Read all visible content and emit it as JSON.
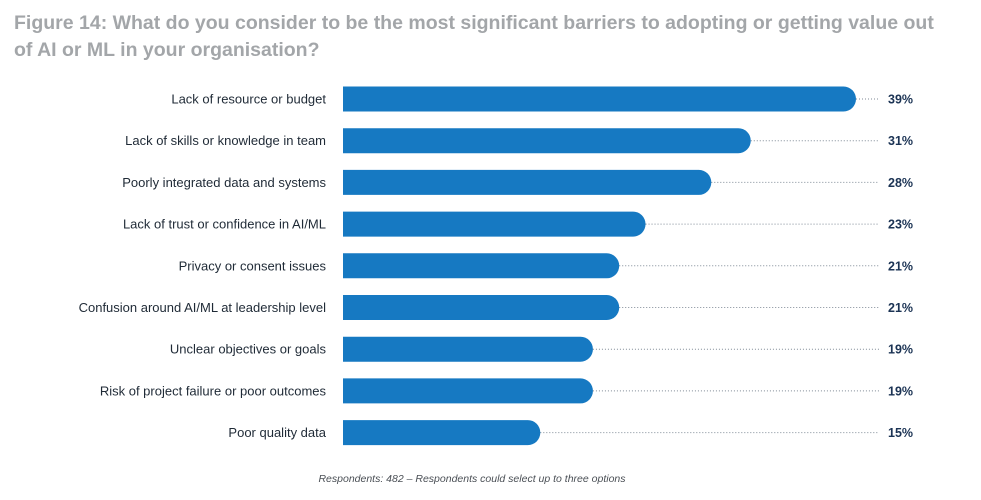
{
  "chart_data": {
    "type": "bar",
    "orientation": "horizontal",
    "title": "Figure 14: What do you consider to be the most significant barriers to adopting or getting value out of AI or ML in your organisation?",
    "categories": [
      "Lack of resource or budget",
      "Lack of skills or knowledge in team",
      "Poorly integrated data and systems",
      "Lack of trust or confidence in AI/ML",
      "Privacy or consent issues",
      "Confusion around AI/ML at leadership level",
      "Unclear objectives or goals",
      "Risk of project failure or poor outcomes",
      "Poor quality data"
    ],
    "values": [
      39,
      31,
      28,
      23,
      21,
      21,
      19,
      19,
      15
    ],
    "value_labels": [
      "39%",
      "31%",
      "28%",
      "23%",
      "21%",
      "21%",
      "19%",
      "19%",
      "15%"
    ],
    "unit": "%",
    "xlim": [
      0,
      40
    ],
    "bar_color": "#1679c2",
    "footnote": "Respondents: 482  –  Respondents could select up to three options"
  }
}
